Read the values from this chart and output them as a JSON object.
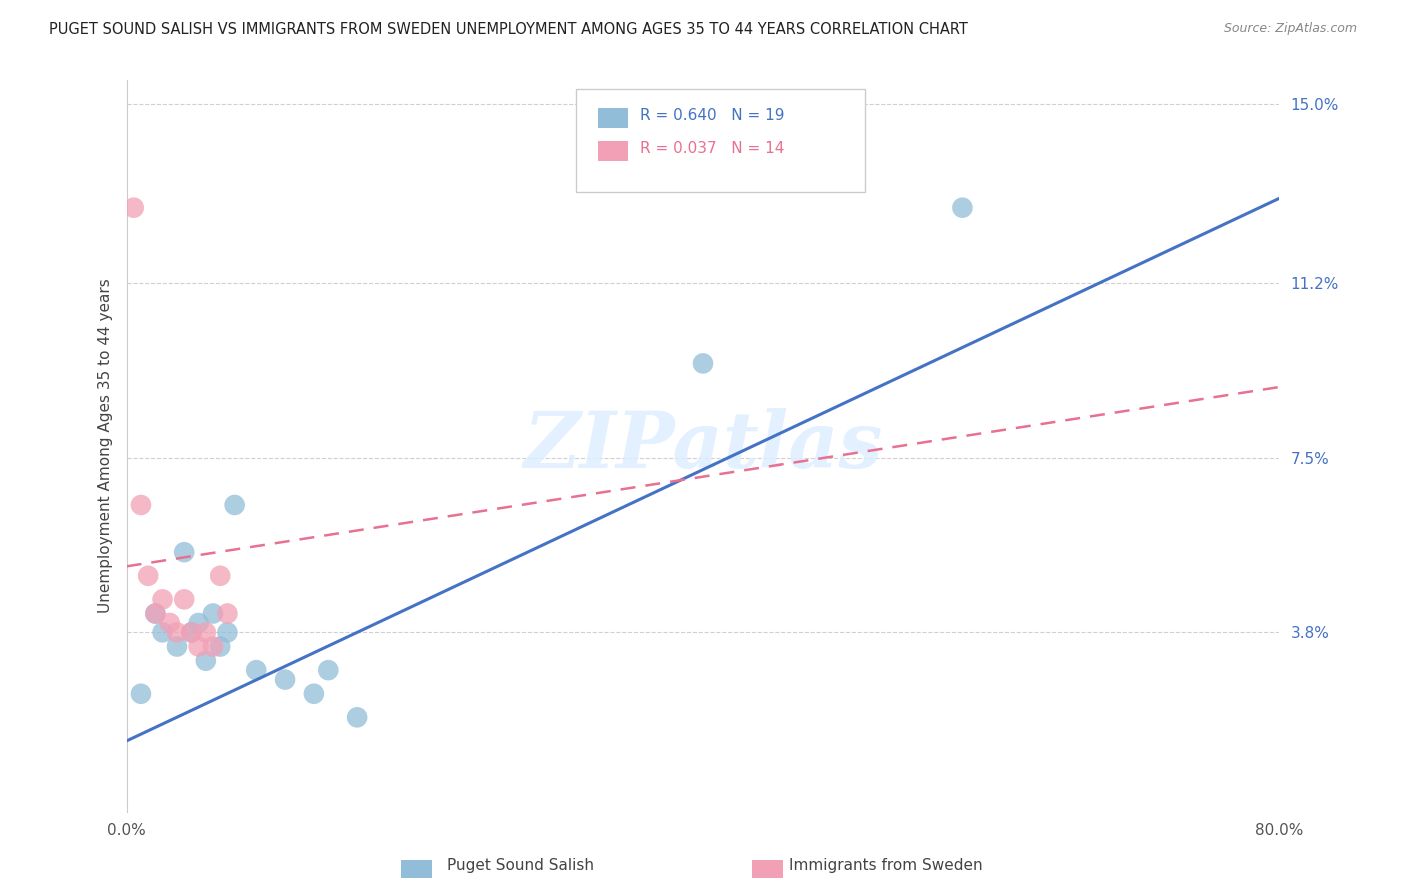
{
  "title": "PUGET SOUND SALISH VS IMMIGRANTS FROM SWEDEN UNEMPLOYMENT AMONG AGES 35 TO 44 YEARS CORRELATION CHART",
  "source": "Source: ZipAtlas.com",
  "ylabel": "Unemployment Among Ages 35 to 44 years",
  "xlim": [
    0.0,
    80.0
  ],
  "ylim": [
    0.0,
    15.5
  ],
  "ytick_labels": [
    "3.8%",
    "7.5%",
    "11.2%",
    "15.0%"
  ],
  "yticks": [
    3.8,
    7.5,
    11.2,
    15.0
  ],
  "legend_r1": "R = 0.640",
  "legend_n1": "N = 19",
  "legend_r2": "R = 0.037",
  "legend_n2": "N = 14",
  "blue_color": "#92BDD8",
  "pink_color": "#F2A0B5",
  "blue_line_color": "#4472C4",
  "pink_line_color": "#E87090",
  "watermark": "ZIPatlas",
  "blue_x": [
    1.0,
    2.0,
    2.5,
    3.5,
    4.0,
    4.5,
    5.0,
    5.5,
    6.0,
    6.5,
    7.0,
    7.5,
    9.0,
    11.0,
    13.0,
    14.0,
    16.0,
    40.0,
    58.0
  ],
  "blue_y": [
    2.5,
    4.2,
    3.8,
    3.5,
    5.5,
    3.8,
    4.0,
    3.2,
    4.2,
    3.5,
    3.8,
    6.5,
    3.0,
    2.8,
    2.5,
    3.0,
    2.0,
    9.5,
    12.8
  ],
  "pink_x": [
    0.5,
    1.0,
    1.5,
    2.0,
    2.5,
    3.0,
    3.5,
    4.0,
    4.5,
    5.0,
    5.5,
    6.0,
    6.5,
    7.0
  ],
  "pink_y": [
    12.8,
    6.5,
    5.0,
    4.2,
    4.5,
    4.0,
    3.8,
    4.5,
    3.8,
    3.5,
    3.8,
    3.5,
    5.0,
    4.2
  ],
  "blue_trendline_x0": 0.0,
  "blue_trendline_y0": 1.5,
  "blue_trendline_x1": 80.0,
  "blue_trendline_y1": 13.0,
  "pink_trendline_x0": 0.0,
  "pink_trendline_y0": 5.2,
  "pink_trendline_x1": 80.0,
  "pink_trendline_y1": 9.0
}
